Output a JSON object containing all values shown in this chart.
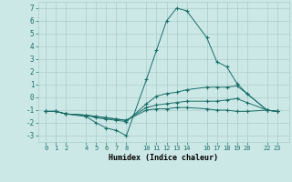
{
  "xlabel": "Humidex (Indice chaleur)",
  "background_color": "#cce8e6",
  "grid_color": "#aaccca",
  "line_color": "#1a6e68",
  "ylim": [
    -3.5,
    7.5
  ],
  "yticks": [
    -3,
    -2,
    -1,
    0,
    1,
    2,
    3,
    4,
    5,
    6,
    7
  ],
  "xticks": [
    0,
    1,
    2,
    4,
    5,
    6,
    7,
    8,
    10,
    11,
    12,
    13,
    14,
    16,
    17,
    18,
    19,
    20,
    22,
    23
  ],
  "xlim": [
    -0.8,
    24.2
  ],
  "lines": [
    {
      "x": [
        0,
        1,
        2,
        4,
        5,
        6,
        7,
        8,
        10,
        11,
        12,
        13,
        14,
        16,
        17,
        18,
        19,
        20,
        22,
        23
      ],
      "y": [
        -1.1,
        -1.1,
        -1.3,
        -1.5,
        -2.0,
        -2.4,
        -2.6,
        -3.0,
        1.4,
        3.7,
        6.0,
        7.0,
        6.8,
        4.7,
        2.8,
        2.4,
        1.1,
        0.3,
        -1.0,
        -1.1
      ]
    },
    {
      "x": [
        0,
        1,
        2,
        4,
        5,
        6,
        7,
        8,
        10,
        11,
        12,
        13,
        14,
        16,
        17,
        18,
        19,
        20,
        22,
        23
      ],
      "y": [
        -1.1,
        -1.1,
        -1.3,
        -1.4,
        -1.6,
        -1.7,
        -1.8,
        -1.9,
        -0.5,
        0.1,
        0.3,
        0.4,
        0.6,
        0.8,
        0.8,
        0.8,
        0.9,
        0.3,
        -1.0,
        -1.1
      ]
    },
    {
      "x": [
        0,
        1,
        2,
        4,
        5,
        6,
        7,
        8,
        10,
        11,
        12,
        13,
        14,
        16,
        17,
        18,
        19,
        20,
        22,
        23
      ],
      "y": [
        -1.1,
        -1.1,
        -1.3,
        -1.4,
        -1.5,
        -1.6,
        -1.7,
        -1.8,
        -0.8,
        -0.6,
        -0.5,
        -0.4,
        -0.3,
        -0.3,
        -0.3,
        -0.2,
        -0.1,
        -0.4,
        -1.0,
        -1.1
      ]
    },
    {
      "x": [
        0,
        1,
        2,
        4,
        5,
        6,
        7,
        8,
        10,
        11,
        12,
        13,
        14,
        16,
        17,
        18,
        19,
        20,
        22,
        23
      ],
      "y": [
        -1.1,
        -1.1,
        -1.3,
        -1.4,
        -1.5,
        -1.6,
        -1.7,
        -1.8,
        -1.0,
        -0.9,
        -0.9,
        -0.8,
        -0.8,
        -0.9,
        -1.0,
        -1.0,
        -1.1,
        -1.1,
        -1.0,
        -1.1
      ]
    }
  ]
}
